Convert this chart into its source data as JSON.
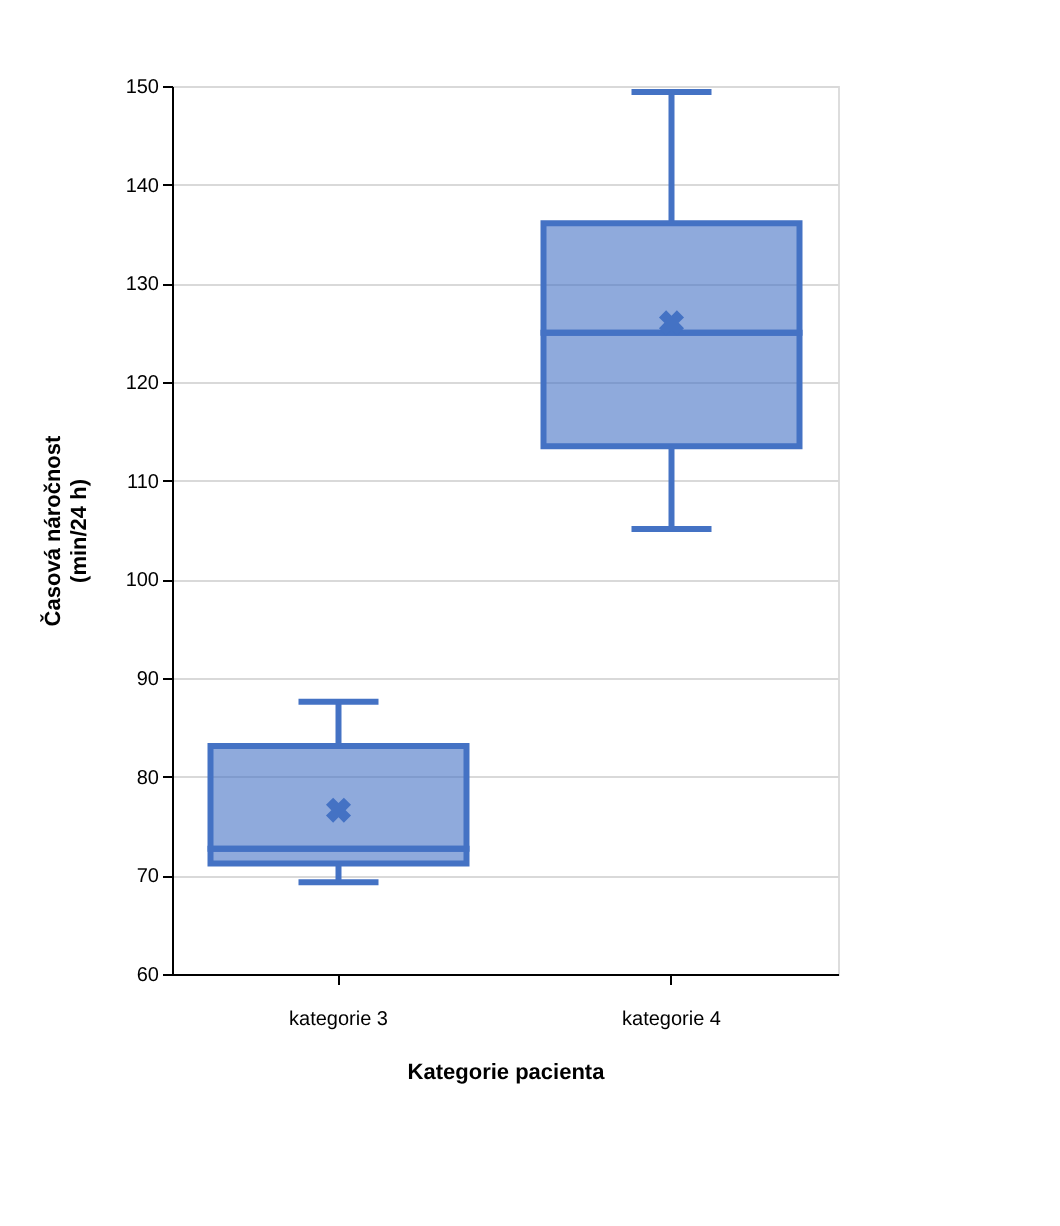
{
  "chart_data": {
    "type": "box",
    "categories": [
      "kategorie 3",
      "kategorie 4"
    ],
    "boxes": [
      {
        "low": 69.3,
        "q1": 71.2,
        "median": 72.7,
        "q3": 83.1,
        "high": 87.6,
        "mean": 76.6
      },
      {
        "low": 105.1,
        "q1": 113.5,
        "median": 125,
        "q3": 136.1,
        "high": 149.4,
        "mean": 126
      }
    ],
    "color": "#4472c4",
    "xlabel": "Kategorie pacienta",
    "ylabel": "Časová náročnost\n(min/24 h)",
    "ylim": [
      60,
      150
    ],
    "yticks": [
      60,
      70,
      80,
      90,
      100,
      110,
      120,
      130,
      140,
      150
    ],
    "grid": "y",
    "marker": "cross"
  }
}
